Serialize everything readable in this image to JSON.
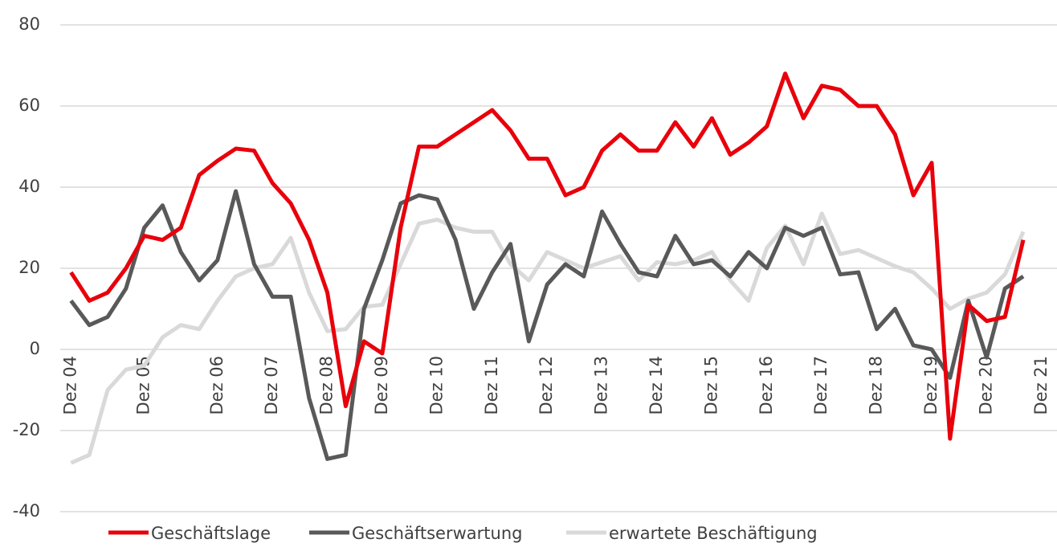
{
  "chart_data": {
    "type": "line",
    "categories": [
      "Dez 04",
      null,
      null,
      null,
      "Dez 05",
      null,
      null,
      null,
      "Dez 06",
      null,
      null,
      "Dez 07",
      null,
      null,
      "Dez 08",
      null,
      null,
      "Dez 09",
      null,
      null,
      "Dez 10",
      null,
      null,
      "Dez 11",
      null,
      null,
      "Dez 12",
      null,
      null,
      "Dez 13",
      null,
      null,
      "Dez 14",
      null,
      null,
      "Dez 15",
      null,
      null,
      "Dez 16",
      null,
      null,
      "Dez 17",
      null,
      null,
      "Dez 18",
      null,
      null,
      "Dez 19",
      null,
      null,
      "Dez 20",
      null,
      null,
      "Dez 21"
    ],
    "series": [
      {
        "name": "Geschäftslage",
        "color": "#e8000b",
        "values": [
          19,
          12,
          14,
          20,
          28,
          27,
          30,
          43,
          46.5,
          49.5,
          49,
          41,
          36,
          27,
          14,
          -14,
          2,
          -1,
          30,
          50,
          50,
          53,
          56,
          59,
          54,
          47,
          47,
          38,
          40,
          49,
          53,
          49,
          49,
          56,
          50,
          57,
          48,
          51,
          55,
          68,
          57,
          65,
          64,
          60,
          60,
          53,
          38,
          46,
          -22,
          11,
          7,
          8,
          27,
          null
        ]
      },
      {
        "name": "Geschäftserwartung",
        "color": "#595959",
        "values": [
          12,
          6,
          8,
          15,
          30,
          35.5,
          24,
          17,
          22,
          39,
          21,
          13,
          13,
          -12,
          -27,
          -26,
          10,
          22,
          36,
          38,
          37,
          27,
          10,
          19,
          26,
          2,
          16,
          21,
          18,
          34,
          26,
          19,
          18,
          28,
          21,
          22,
          18,
          24,
          20,
          30,
          28,
          30,
          18.5,
          19,
          5,
          10,
          1,
          0,
          -7,
          12,
          -2,
          15,
          18,
          null
        ]
      },
      {
        "name": "erwartete Beschäftigung",
        "color": "#d9d9d9",
        "values": [
          -28,
          -26,
          -10,
          -5,
          -4,
          3,
          6,
          5,
          12,
          18,
          20,
          21,
          27.5,
          14,
          4.5,
          5,
          10.5,
          11,
          21,
          31,
          32,
          30,
          29,
          29,
          21,
          17,
          24,
          22,
          20,
          21.5,
          23,
          17,
          21.5,
          21,
          22,
          24,
          17,
          12,
          25,
          30.5,
          21,
          33.5,
          23.5,
          24.5,
          22.5,
          20.5,
          19,
          15,
          10,
          12.5,
          14,
          18.5,
          29,
          null
        ]
      }
    ],
    "ylim": [
      -40,
      80
    ],
    "yticks": [
      -40,
      -20,
      0,
      20,
      40,
      60,
      80
    ],
    "grid": true,
    "legend": "bottom"
  }
}
